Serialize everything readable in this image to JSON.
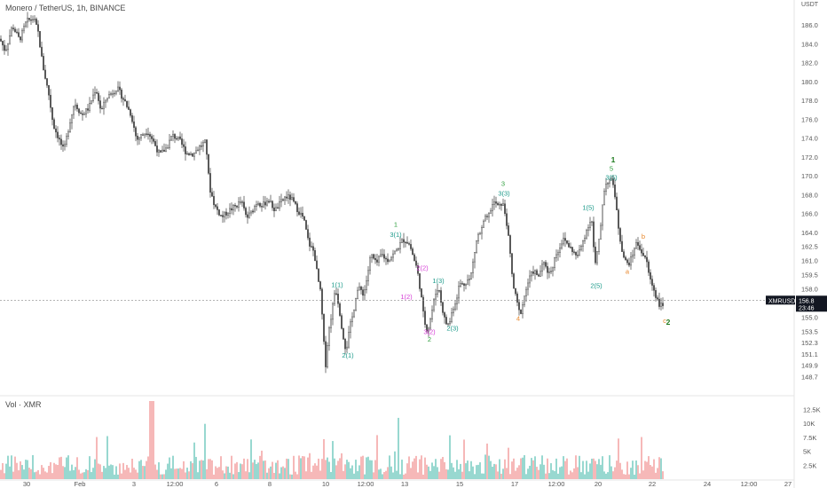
{
  "header": {
    "symbol_title": "Monero / TetherUS, 1h, BINANCE",
    "currency": "USDT",
    "volume_title": "Vol · XMR"
  },
  "last_price": {
    "symbol": "XMRUSDT",
    "price": "156.8",
    "countdown": "23:46"
  },
  "colors": {
    "candle": "#555555",
    "vol_up": "#7ecfc4",
    "vol_down": "#f4a6a6",
    "green": "#2e9e3e",
    "teal": "#1c9a8a",
    "magenta": "#d63fd6",
    "orange": "#e8862a",
    "dark_green": "#1e7a1e",
    "label_bg": "#131722"
  },
  "chart_data": {
    "type": "candlestick",
    "price_axis": {
      "range": [
        147.6,
        187.7
      ],
      "ticks": [
        "186.0",
        "184.0",
        "182.0",
        "180.0",
        "178.0",
        "176.0",
        "174.0",
        "172.0",
        "170.0",
        "168.0",
        "166.0",
        "164.0",
        "162.5",
        "161.0",
        "159.5",
        "158.0",
        "156.8",
        "155.0",
        "153.5",
        "152.3",
        "151.1",
        "149.9",
        "148.7"
      ]
    },
    "volume_axis": {
      "range": [
        0,
        14000
      ],
      "ticks": [
        "12.5K",
        "10K",
        "7.5K",
        "5K",
        "2.5K"
      ]
    },
    "time_axis": {
      "ticks": [
        "30",
        "Feb",
        "3",
        "12:00",
        "6",
        "8",
        "10",
        "12:00",
        "13",
        "15",
        "17",
        "12:00",
        "20",
        "22",
        "24",
        "12:00",
        "27"
      ]
    },
    "price_path": [
      [
        0,
        184.5
      ],
      [
        6,
        183.2
      ],
      [
        14,
        185.9
      ],
      [
        22,
        184.4
      ],
      [
        30,
        186.4
      ],
      [
        38,
        186.7
      ],
      [
        43,
        185.2
      ],
      [
        48,
        181.8
      ],
      [
        55,
        178.6
      ],
      [
        60,
        175.4
      ],
      [
        66,
        174.0
      ],
      [
        72,
        172.6
      ],
      [
        78,
        175.4
      ],
      [
        84,
        177.8
      ],
      [
        92,
        176.4
      ],
      [
        100,
        177.2
      ],
      [
        108,
        179.3
      ],
      [
        114,
        176.8
      ],
      [
        120,
        178.3
      ],
      [
        126,
        178.8
      ],
      [
        132,
        179.3
      ],
      [
        140,
        178.0
      ],
      [
        148,
        176.4
      ],
      [
        154,
        173.8
      ],
      [
        160,
        174.3
      ],
      [
        166,
        174.8
      ],
      [
        172,
        173.8
      ],
      [
        180,
        172.2
      ],
      [
        188,
        173.0
      ],
      [
        194,
        174.3
      ],
      [
        202,
        173.8
      ],
      [
        210,
        172.4
      ],
      [
        218,
        172.3
      ],
      [
        224,
        173.0
      ],
      [
        232,
        173.6
      ],
      [
        236,
        168.8
      ],
      [
        242,
        166.8
      ],
      [
        250,
        165.6
      ],
      [
        258,
        166.3
      ],
      [
        266,
        166.8
      ],
      [
        272,
        167.3
      ],
      [
        278,
        165.5
      ],
      [
        284,
        166.2
      ],
      [
        290,
        167.3
      ],
      [
        296,
        166.8
      ],
      [
        302,
        167.5
      ],
      [
        310,
        166.3
      ],
      [
        316,
        167.1
      ],
      [
        322,
        167.8
      ],
      [
        328,
        167.6
      ],
      [
        336,
        166.3
      ],
      [
        342,
        165.5
      ],
      [
        348,
        162.8
      ],
      [
        354,
        161.9
      ],
      [
        358,
        159.2
      ],
      [
        362,
        157.2
      ],
      [
        364,
        153.2
      ],
      [
        367,
        150.0
      ],
      [
        370,
        153.2
      ],
      [
        374,
        155.6
      ],
      [
        378,
        158.2
      ],
      [
        382,
        156.1
      ],
      [
        386,
        153.4
      ],
      [
        390,
        151.4
      ],
      [
        394,
        153.8
      ],
      [
        398,
        155.4
      ],
      [
        402,
        157.8
      ],
      [
        406,
        158.0
      ],
      [
        410,
        157.4
      ],
      [
        414,
        159.4
      ],
      [
        418,
        161.7
      ],
      [
        424,
        160.6
      ],
      [
        430,
        161.7
      ],
      [
        436,
        161.0
      ],
      [
        442,
        161.5
      ],
      [
        446,
        162.0
      ],
      [
        450,
        162.6
      ],
      [
        454,
        163.2
      ],
      [
        458,
        163.1
      ],
      [
        462,
        162.6
      ],
      [
        466,
        161.3
      ],
      [
        470,
        160.1
      ],
      [
        474,
        157.7
      ],
      [
        478,
        154.6
      ],
      [
        482,
        153.5
      ],
      [
        486,
        155.3
      ],
      [
        490,
        157.2
      ],
      [
        494,
        158.3
      ],
      [
        498,
        156.1
      ],
      [
        502,
        154.4
      ],
      [
        506,
        154.2
      ],
      [
        510,
        155.8
      ],
      [
        514,
        156.8
      ],
      [
        518,
        158.6
      ],
      [
        522,
        158.4
      ],
      [
        526,
        158.9
      ],
      [
        530,
        159.0
      ],
      [
        534,
        161.4
      ],
      [
        538,
        163.6
      ],
      [
        542,
        164.0
      ],
      [
        546,
        165.4
      ],
      [
        550,
        165.5
      ],
      [
        554,
        166.8
      ],
      [
        558,
        167.2
      ],
      [
        562,
        166.6
      ],
      [
        566,
        167.2
      ],
      [
        570,
        165.7
      ],
      [
        574,
        162.6
      ],
      [
        578,
        158.5
      ],
      [
        582,
        156.8
      ],
      [
        586,
        155.2
      ],
      [
        590,
        156.8
      ],
      [
        594,
        158.4
      ],
      [
        598,
        159.4
      ],
      [
        602,
        160.0
      ],
      [
        606,
        159.1
      ],
      [
        610,
        160.2
      ],
      [
        614,
        160.8
      ],
      [
        618,
        159.6
      ],
      [
        622,
        160.1
      ],
      [
        626,
        161.6
      ],
      [
        630,
        162.2
      ],
      [
        634,
        163.2
      ],
      [
        638,
        163.0
      ],
      [
        642,
        162.4
      ],
      [
        646,
        162.0
      ],
      [
        650,
        161.3
      ],
      [
        654,
        162.2
      ],
      [
        658,
        163.4
      ],
      [
        662,
        164.5
      ],
      [
        666,
        165.4
      ],
      [
        668,
        164.8
      ],
      [
        670,
        160.0
      ],
      [
        672,
        161.2
      ],
      [
        676,
        163.6
      ],
      [
        680,
        168.2
      ],
      [
        684,
        169.4
      ],
      [
        688,
        169.6
      ],
      [
        692,
        168.9
      ],
      [
        696,
        165.2
      ],
      [
        700,
        162.6
      ],
      [
        704,
        161.0
      ],
      [
        708,
        160.6
      ],
      [
        712,
        161.3
      ],
      [
        716,
        162.8
      ],
      [
        720,
        162.6
      ],
      [
        724,
        161.7
      ],
      [
        728,
        161.2
      ],
      [
        732,
        159.2
      ],
      [
        736,
        158.2
      ],
      [
        740,
        157.0
      ],
      [
        744,
        156.2
      ],
      [
        748,
        156.2
      ]
    ],
    "volume_series": "estimated per-bar volumes, peaks near 14K",
    "wave_labels": [
      {
        "x": 446,
        "price": 164.6,
        "text": "1",
        "color": "green"
      },
      {
        "x": 446,
        "price": 163.5,
        "text": "3(1)",
        "color": "teal"
      },
      {
        "x": 380,
        "price": 158.2,
        "text": "1(1)",
        "color": "teal"
      },
      {
        "x": 392,
        "price": 150.7,
        "text": "2(1)",
        "color": "teal"
      },
      {
        "x": 476,
        "price": 160.0,
        "text": "2(2)",
        "color": "magenta"
      },
      {
        "x": 458,
        "price": 156.9,
        "text": "1(2)",
        "color": "magenta"
      },
      {
        "x": 494,
        "price": 158.6,
        "text": "1(3)",
        "color": "teal"
      },
      {
        "x": 484,
        "price": 153.2,
        "text": "3(2)",
        "color": "magenta"
      },
      {
        "x": 484,
        "price": 152.4,
        "text": "2",
        "color": "green"
      },
      {
        "x": 510,
        "price": 153.6,
        "text": "2(3)",
        "color": "teal"
      },
      {
        "x": 567,
        "price": 168.9,
        "text": "3",
        "color": "green"
      },
      {
        "x": 568,
        "price": 167.9,
        "text": "3(3)",
        "color": "teal"
      },
      {
        "x": 584,
        "price": 154.6,
        "text": "4",
        "color": "orange"
      },
      {
        "x": 663,
        "price": 166.4,
        "text": "1(5)",
        "color": "teal"
      },
      {
        "x": 672,
        "price": 158.1,
        "text": "2(5)",
        "color": "teal"
      },
      {
        "x": 691,
        "price": 171.4,
        "text": "1",
        "color": "dark_green"
      },
      {
        "x": 689,
        "price": 170.5,
        "text": "5",
        "color": "green"
      },
      {
        "x": 689,
        "price": 169.6,
        "text": "3(5)",
        "color": "teal"
      },
      {
        "x": 725,
        "price": 163.3,
        "text": "b",
        "color": "orange"
      },
      {
        "x": 707,
        "price": 159.6,
        "text": "a",
        "color": "orange"
      },
      {
        "x": 749,
        "price": 154.4,
        "text": "c",
        "color": "orange"
      },
      {
        "x": 753,
        "price": 154.2,
        "text": "2",
        "color": "dark_green"
      }
    ]
  }
}
